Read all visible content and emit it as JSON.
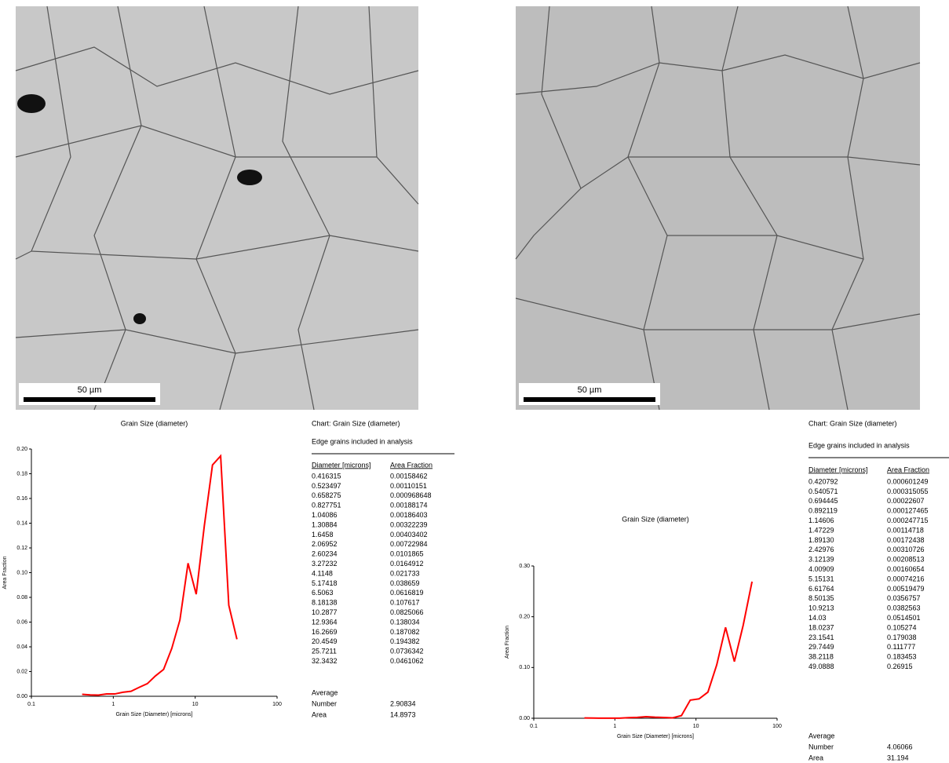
{
  "chart_data": [
    {
      "type": "line",
      "title": "Grain Size (diameter)",
      "x_label": "Grain Size (Diameter) [microns]",
      "y_label": "Area Fraction",
      "log_x": true,
      "xlim": [
        0.1,
        100
      ],
      "xticks": [
        0.1,
        1,
        10,
        100
      ],
      "ylim": [
        0,
        0.2
      ],
      "yticks": [
        {
          "value": 0,
          "label": "0.00"
        },
        {
          "value": 0.02,
          "label": "0.02"
        },
        {
          "value": 0.04,
          "label": "0.04"
        },
        {
          "value": 0.06,
          "label": "0.06"
        },
        {
          "value": 0.08,
          "label": "0.08"
        },
        {
          "value": 0.1,
          "label": "0.10"
        },
        {
          "value": 0.12,
          "label": "0.12"
        },
        {
          "value": 0.14,
          "label": "0.14"
        },
        {
          "value": 0.16,
          "label": "0.16"
        },
        {
          "value": 0.18,
          "label": "0.18"
        },
        {
          "value": 0.2,
          "label": "0.20"
        }
      ],
      "x": [
        0.416315,
        0.523497,
        0.658275,
        0.827751,
        1.04086,
        1.30884,
        1.6458,
        2.06952,
        2.60234,
        3.27232,
        4.1148,
        5.17418,
        6.5063,
        8.18138,
        10.2877,
        12.9364,
        16.2669,
        20.4549,
        25.7211,
        32.3432
      ],
      "series": [
        {
          "color": "#ff0000",
          "values": [
            0.00158462,
            0.00110151,
            0.000968648,
            0.00188174,
            0.00186403,
            0.00322239,
            0.00403402,
            0.00722984,
            0.0101865,
            0.0164912,
            0.021733,
            0.038659,
            0.0616819,
            0.107617,
            0.0825066,
            0.138034,
            0.187082,
            0.194382,
            0.0736342,
            0.0461062
          ]
        }
      ]
    },
    {
      "type": "line",
      "title": "Grain Size (diameter)",
      "x_label": "Grain Size (Diameter) [microns]",
      "y_label": "Area Fraction",
      "log_x": true,
      "xlim": [
        0.1,
        100
      ],
      "xticks": [
        0.1,
        1,
        10,
        100
      ],
      "ylim": [
        0,
        0.3
      ],
      "yticks": [
        {
          "value": 0,
          "label": "0.00"
        },
        {
          "value": 0.1,
          "label": "0.10"
        },
        {
          "value": 0.2,
          "label": "0.20"
        },
        {
          "value": 0.3,
          "label": "0.30"
        }
      ],
      "x": [
        0.420792,
        0.540571,
        0.694445,
        0.892119,
        1.14606,
        1.47229,
        1.8913,
        2.42976,
        3.12139,
        4.00909,
        5.15131,
        6.61764,
        8.50135,
        10.9213,
        14.03,
        18.0237,
        23.1541,
        29.7449,
        38.2118,
        49.0888
      ],
      "series": [
        {
          "color": "#ff0000",
          "values": [
            0.000601249,
            0.000315055,
            0.00022607,
            0.000127465,
            0.000247715,
            0.00114718,
            0.00172438,
            0.00310726,
            0.00208513,
            0.00160654,
            0.00074216,
            0.00519479,
            0.0356757,
            0.0382563,
            0.0514501,
            0.105274,
            0.179038,
            0.111777,
            0.183453,
            0.26915
          ]
        }
      ]
    }
  ],
  "images": [
    {
      "scale_bar": "50 µm"
    },
    {
      "scale_bar": "50 µm"
    }
  ],
  "tables": [
    {
      "header": "Chart: Grain Size (diameter)",
      "note": "Edge grains included in analysis",
      "columns": [
        "Diameter [microns]",
        "Area Fraction"
      ],
      "rows": [
        [
          "0.416315",
          "0.00158462"
        ],
        [
          "0.523497",
          "0.00110151"
        ],
        [
          "0.658275",
          "0.000968648"
        ],
        [
          "0.827751",
          "0.00188174"
        ],
        [
          "1.04086",
          "0.00186403"
        ],
        [
          "1.30884",
          "0.00322239"
        ],
        [
          "1.6458",
          "0.00403402"
        ],
        [
          "2.06952",
          "0.00722984"
        ],
        [
          "2.60234",
          "0.0101865"
        ],
        [
          "3.27232",
          "0.0164912"
        ],
        [
          "4.1148",
          "0.021733"
        ],
        [
          "5.17418",
          "0.038659"
        ],
        [
          "6.5063",
          "0.0616819"
        ],
        [
          "8.18138",
          "0.107617"
        ],
        [
          "10.2877",
          "0.0825066"
        ],
        [
          "12.9364",
          "0.138034"
        ],
        [
          "16.2669",
          "0.187082"
        ],
        [
          "20.4549",
          "0.194382"
        ],
        [
          "25.7211",
          "0.0736342"
        ],
        [
          "32.3432",
          "0.0461062"
        ]
      ],
      "average_title": "Average",
      "average": [
        [
          "Number",
          "2.90834"
        ],
        [
          "Area",
          "14.8973"
        ]
      ]
    },
    {
      "header": "Chart: Grain Size (diameter)",
      "note": "Edge grains included in analysis",
      "columns": [
        "Diameter [microns]",
        "Area Fraction"
      ],
      "rows": [
        [
          "0.420792",
          "0.000601249"
        ],
        [
          "0.540571",
          "0.000315055"
        ],
        [
          "0.694445",
          "0.00022607"
        ],
        [
          "0.892119",
          "0.000127465"
        ],
        [
          "1.14606",
          "0.000247715"
        ],
        [
          "1.47229",
          "0.00114718"
        ],
        [
          "1.89130",
          "0.00172438"
        ],
        [
          "2.42976",
          "0.00310726"
        ],
        [
          "3.12139",
          "0.00208513"
        ],
        [
          "4.00909",
          "0.00160654"
        ],
        [
          "5.15131",
          "0.00074216"
        ],
        [
          "6.61764",
          "0.00519479"
        ],
        [
          "8.50135",
          "0.0356757"
        ],
        [
          "10.9213",
          "0.0382563"
        ],
        [
          "14.03",
          "0.0514501"
        ],
        [
          "18.0237",
          "0.105274"
        ],
        [
          "23.1541",
          "0.179038"
        ],
        [
          "29.7449",
          "0.111777"
        ],
        [
          "38.2118",
          "0.183453"
        ],
        [
          "49.0888",
          "0.26915"
        ]
      ],
      "average_title": "Average",
      "average": [
        [
          "Number",
          "4.06066"
        ],
        [
          "Area",
          "31.194"
        ]
      ]
    }
  ]
}
